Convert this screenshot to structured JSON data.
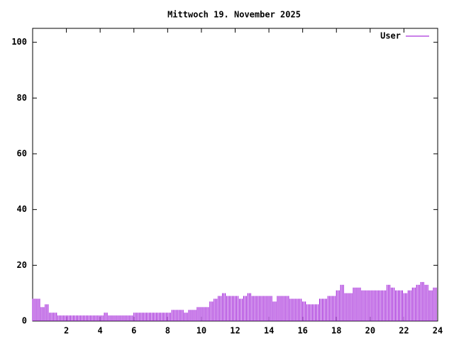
{
  "chart_data": {
    "type": "impulse",
    "title": "Mittwoch 19. November 2025",
    "x": [
      0,
      0.25,
      0.5,
      0.75,
      1,
      1.25,
      1.5,
      1.75,
      2,
      2.25,
      2.5,
      2.75,
      3,
      3.25,
      3.5,
      3.75,
      4,
      4.25,
      4.5,
      4.75,
      5,
      5.25,
      5.5,
      5.75,
      6,
      6.25,
      6.5,
      6.75,
      7,
      7.25,
      7.5,
      7.75,
      8,
      8.25,
      8.5,
      8.75,
      9,
      9.25,
      9.5,
      9.75,
      10,
      10.25,
      10.5,
      10.75,
      11,
      11.25,
      11.5,
      11.75,
      12,
      12.25,
      12.5,
      12.75,
      13,
      13.25,
      13.5,
      13.75,
      14,
      14.25,
      14.5,
      14.75,
      15,
      15.25,
      15.5,
      15.75,
      16,
      16.25,
      16.5,
      16.75,
      17,
      17.25,
      17.5,
      17.75,
      18,
      18.25,
      18.5,
      18.75,
      19,
      19.25,
      19.5,
      19.75,
      20,
      20.25,
      20.5,
      20.75,
      21,
      21.25,
      21.5,
      21.75,
      22,
      22.25,
      22.5,
      22.75,
      23,
      23.25,
      23.5,
      23.75
    ],
    "series": [
      {
        "name": "User",
        "color": "#9400d3",
        "values": [
          8,
          8,
          5,
          6,
          3,
          3,
          2,
          2,
          2,
          2,
          2,
          2,
          2,
          2,
          2,
          2,
          2,
          3,
          2,
          2,
          2,
          2,
          2,
          2,
          3,
          3,
          3,
          3,
          3,
          3,
          3,
          3,
          3,
          4,
          4,
          4,
          3,
          4,
          4,
          5,
          5,
          5,
          7,
          8,
          9,
          10,
          9,
          9,
          9,
          8,
          9,
          10,
          9,
          9,
          9,
          9,
          9,
          7,
          9,
          9,
          9,
          8,
          8,
          8,
          7,
          6,
          6,
          6,
          8,
          8,
          9,
          9,
          11,
          13,
          10,
          10,
          12,
          12,
          11,
          11,
          11,
          11,
          11,
          11,
          13,
          12,
          11,
          11,
          10,
          11,
          12,
          13,
          14,
          13,
          11,
          12
        ]
      }
    ],
    "xlim": [
      0,
      24
    ],
    "xticks": [
      2,
      4,
      6,
      8,
      10,
      12,
      14,
      16,
      18,
      20,
      22,
      24
    ],
    "ylim": [
      0,
      105
    ],
    "yticks": [
      0,
      20,
      40,
      60,
      80,
      100
    ],
    "legend": "top-right"
  }
}
